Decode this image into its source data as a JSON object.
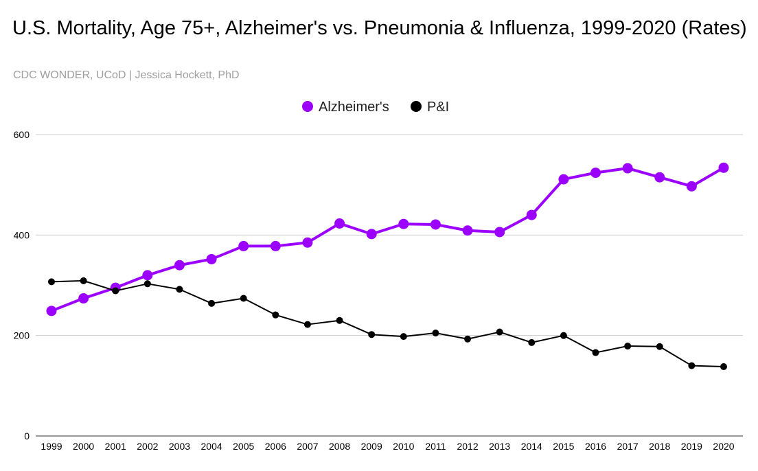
{
  "chart_data": {
    "type": "line",
    "title": "U.S. Mortality, Age 75+, Alzheimer's vs. Pneumonia & Influenza, 1999-2020 (Rates)",
    "subtitle": "CDC WONDER, UCoD | Jessica Hockett, PhD",
    "xlabel": "",
    "ylabel": "",
    "ylim": [
      0,
      600
    ],
    "yticks": [
      "0",
      "200",
      "400",
      "600"
    ],
    "grid": true,
    "legend_position": "top-center",
    "categories": [
      "1999",
      "2000",
      "2001",
      "2002",
      "2003",
      "2004",
      "2005",
      "2006",
      "2007",
      "2008",
      "2009",
      "2010",
      "2011",
      "2012",
      "2013",
      "2014",
      "2015",
      "2016",
      "2017",
      "2018",
      "2019",
      "2020"
    ],
    "series": [
      {
        "name": "Alzheimer's",
        "color": "#9b00ff",
        "values": [
          249,
          274,
          295,
          320,
          340,
          352,
          378,
          378,
          385,
          423,
          402,
          422,
          421,
          409,
          406,
          440,
          511,
          524,
          533,
          515,
          497,
          534
        ]
      },
      {
        "name": "P&I",
        "color": "#000000",
        "values": [
          307,
          309,
          289,
          303,
          292,
          264,
          274,
          241,
          222,
          230,
          202,
          198,
          205,
          193,
          207,
          186,
          200,
          166,
          179,
          178,
          140,
          138
        ]
      }
    ]
  }
}
